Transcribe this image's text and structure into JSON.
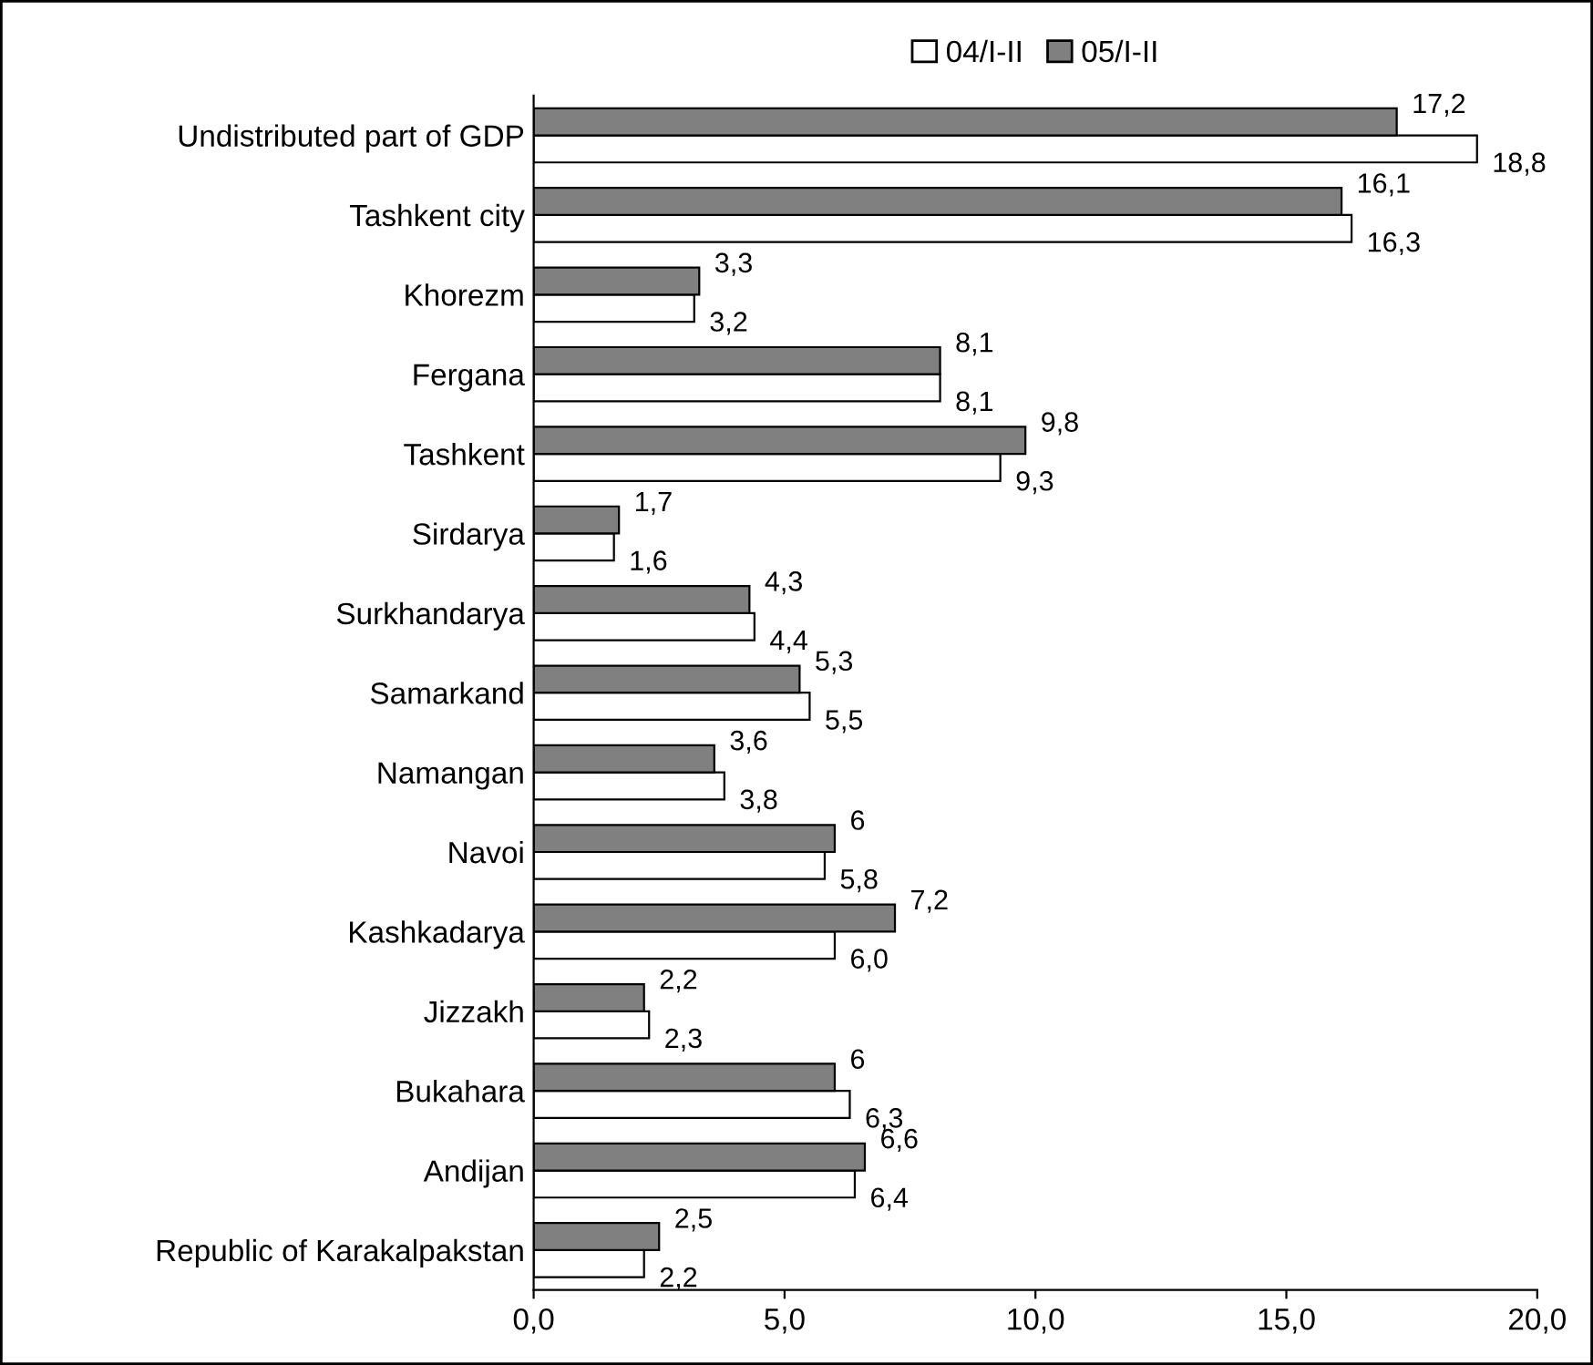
{
  "chart_data": {
    "type": "bar",
    "orientation": "horizontal",
    "legend": "top",
    "categories": [
      "Undistributed part of GDP",
      "Tashkent city",
      "Khorezm",
      "Fergana",
      "Tashkent",
      "Sirdarya",
      "Surkhandarya",
      "Samarkand",
      "Namangan",
      "Navoi",
      "Kashkadarya",
      "Jizzakh",
      "Bukahara",
      "Andijan",
      "Republic of Karakalpakstan"
    ],
    "series": [
      {
        "name": "04/I-II",
        "color": "#ffffff",
        "values": [
          18.8,
          16.3,
          3.2,
          8.1,
          9.3,
          1.6,
          4.4,
          5.5,
          3.8,
          5.8,
          6.0,
          2.3,
          6.3,
          6.4,
          2.2
        ],
        "value_labels": [
          "18,8",
          "16,3",
          "3,2",
          "8,1",
          "9,3",
          "1,6",
          "4,4",
          "5,5",
          "3,8",
          "5,8",
          "6,0",
          "2,3",
          "6,3",
          "6,4",
          "2,2"
        ]
      },
      {
        "name": "05/I-II",
        "color": "#808080",
        "values": [
          17.2,
          16.1,
          3.3,
          8.1,
          9.8,
          1.7,
          4.3,
          5.3,
          3.6,
          6,
          7.2,
          2.2,
          6,
          6.6,
          2.5
        ],
        "value_labels": [
          "17,2",
          "16,1",
          "3,3",
          "8,1",
          "9,8",
          "1,7",
          "4,3",
          "5,3",
          "3,6",
          "6",
          "7,2",
          "2,2",
          "6",
          "6,6",
          "2,5"
        ]
      }
    ],
    "xlim": [
      0,
      20
    ],
    "xticks": [
      {
        "value": 0,
        "label": "0,0"
      },
      {
        "value": 5,
        "label": "5,0"
      },
      {
        "value": 10,
        "label": "10,0"
      },
      {
        "value": 15,
        "label": "15,0"
      },
      {
        "value": 20,
        "label": "20,0"
      }
    ]
  }
}
